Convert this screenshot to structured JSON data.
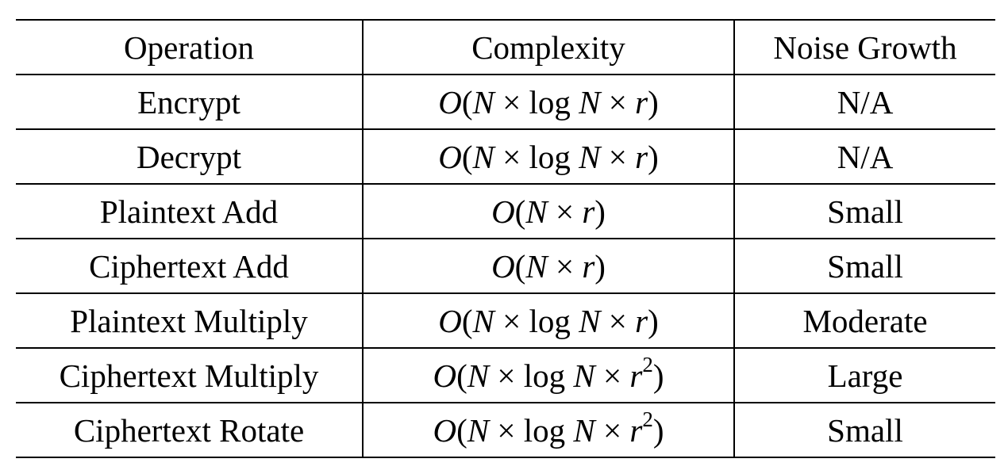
{
  "table": {
    "headers": [
      "Operation",
      "Complexity",
      "Noise Growth"
    ],
    "rows": [
      {
        "operation": "Encrypt",
        "complexity": "O(N × log N × r)",
        "noise": "N/A"
      },
      {
        "operation": "Decrypt",
        "complexity": "O(N × log N × r)",
        "noise": "N/A"
      },
      {
        "operation": "Plaintext Add",
        "complexity": "O(N × r)",
        "noise": "Small"
      },
      {
        "operation": "Ciphertext Add",
        "complexity": "O(N × r)",
        "noise": "Small"
      },
      {
        "operation": "Plaintext Multiply",
        "complexity": "O(N × log N × r)",
        "noise": "Moderate"
      },
      {
        "operation": "Ciphertext Multiply",
        "complexity": "O(N × log N × r^2)",
        "noise": "Large"
      },
      {
        "operation": "Ciphertext Rotate",
        "complexity": "O(N × log N × r^2)",
        "noise": "Small"
      }
    ]
  }
}
